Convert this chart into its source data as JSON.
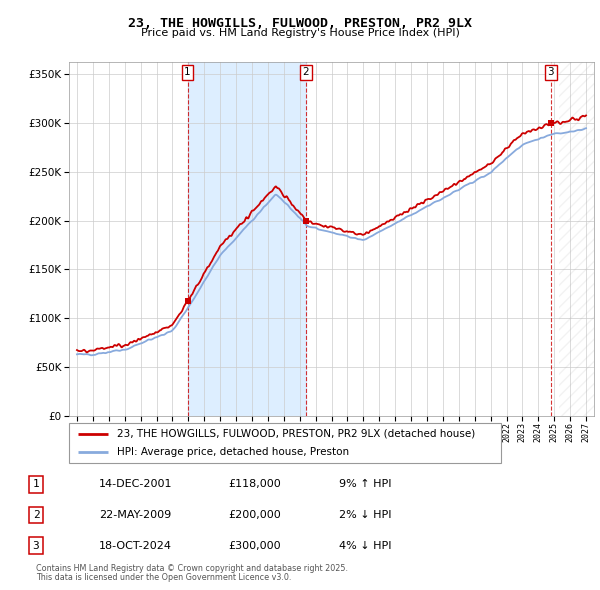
{
  "title": "23, THE HOWGILLS, FULWOOD, PRESTON, PR2 9LX",
  "subtitle": "Price paid vs. HM Land Registry's House Price Index (HPI)",
  "hpi_label": "HPI: Average price, detached house, Preston",
  "property_label": "23, THE HOWGILLS, FULWOOD, PRESTON, PR2 9LX (detached house)",
  "sale1_date": "14-DEC-2001",
  "sale1_price": 118000,
  "sale1_hpi": "9% ↑ HPI",
  "sale1_year": 2001.95,
  "sale2_date": "22-MAY-2009",
  "sale2_price": 200000,
  "sale2_hpi": "2% ↓ HPI",
  "sale2_year": 2009.38,
  "sale3_date": "18-OCT-2024",
  "sale3_price": 300000,
  "sale3_hpi": "4% ↓ HPI",
  "sale3_year": 2024.79,
  "footnote1": "Contains HM Land Registry data © Crown copyright and database right 2025.",
  "footnote2": "This data is licensed under the Open Government Licence v3.0.",
  "red_color": "#cc0000",
  "blue_color": "#88aadd",
  "shade_color": "#ddeeff",
  "background_color": "#ffffff",
  "grid_color": "#cccccc",
  "ylim_min": 0,
  "ylim_max": 362500,
  "xlim_min": 1994.5,
  "xlim_max": 2027.5
}
